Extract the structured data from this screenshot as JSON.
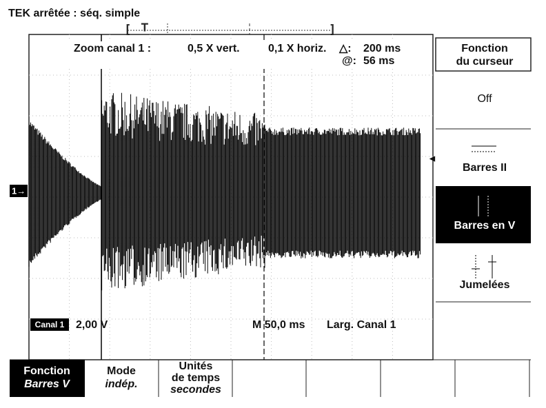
{
  "status": "TEK arrêtée : séq. simple",
  "zoom": {
    "label": "Zoom canal 1 :",
    "vert": "0,5 X vert.",
    "horiz": "0,1 X horiz.",
    "delta_symbol": "△:",
    "delta": "200 ms",
    "at_symbol": "@:",
    "at": "56 ms"
  },
  "channel": {
    "marker": "1→",
    "badge": "Canal 1",
    "scale": "2,00 V",
    "timebase": "M 50,0 ms",
    "trigger": "Larg. Canal 1"
  },
  "side_menu": {
    "title": [
      "Fonction",
      "du curseur"
    ],
    "items": [
      "Off",
      "Barres II",
      "Barres en V",
      "Jumelées"
    ]
  },
  "bottom_menu": [
    [
      "Fonction",
      "Barres V"
    ],
    [
      "Mode",
      "indép."
    ],
    [
      "Unités",
      "de temps",
      "secondes"
    ]
  ]
}
